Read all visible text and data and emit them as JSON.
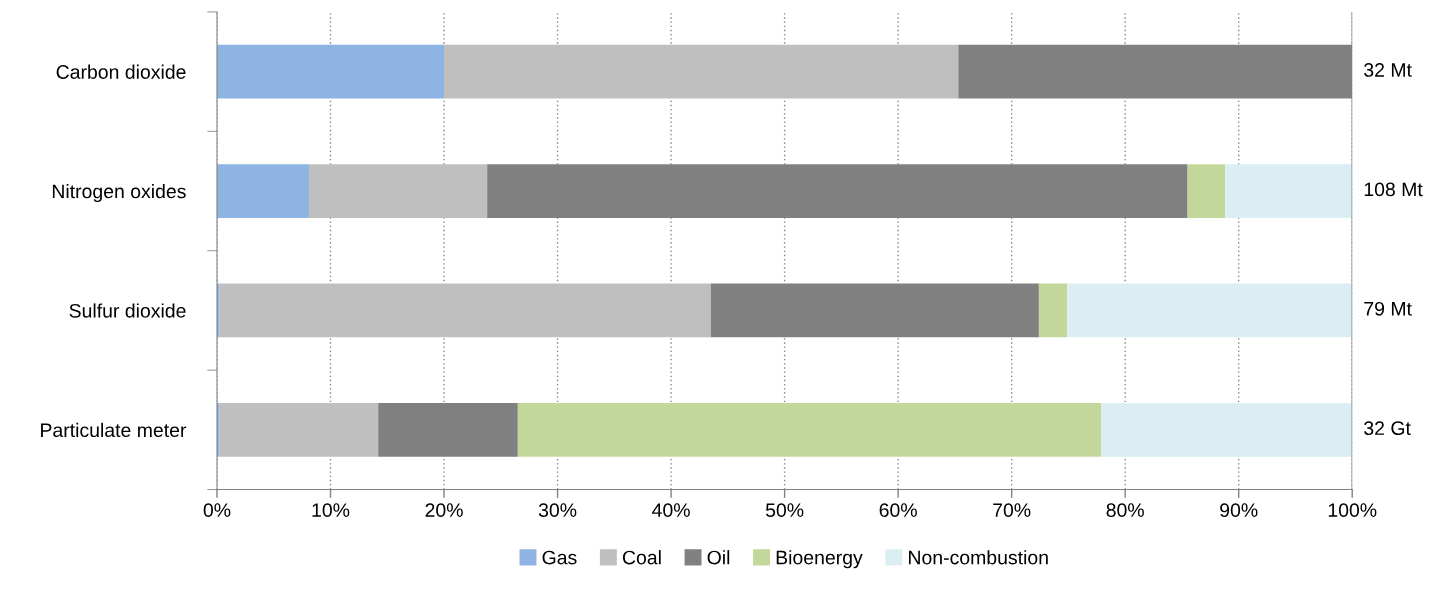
{
  "chart_data": {
    "type": "bar",
    "orientation": "horizontal",
    "stacked": true,
    "categories": [
      "Carbon dioxide",
      "Nitrogen oxides",
      "Sulfur dioxide",
      "Particulate meter"
    ],
    "series": [
      {
        "name": "Gas",
        "color": "#8db4e2",
        "values": [
          20.0,
          8.1,
          0.2,
          0.2
        ]
      },
      {
        "name": "Coal",
        "color": "#bfbfbf",
        "values": [
          45.3,
          15.7,
          43.3,
          14.0
        ]
      },
      {
        "name": "Oil",
        "color": "#808080",
        "values": [
          34.7,
          61.7,
          28.9,
          12.3
        ]
      },
      {
        "name": "Bioenergy",
        "color": "#c4d79b",
        "values": [
          0,
          3.3,
          2.5,
          51.4
        ]
      },
      {
        "name": "Non-combustion",
        "color": "#daeef3",
        "values": [
          0,
          11.2,
          25.1,
          22.1
        ]
      }
    ],
    "annotations": [
      "32 Mt",
      "108 Mt",
      "79 Mt",
      "32 Gt"
    ],
    "xlim": [
      0,
      100
    ],
    "xticks": [
      {
        "value": 0,
        "label": "0%"
      },
      {
        "value": 10,
        "label": "10%"
      },
      {
        "value": 20,
        "label": "20%"
      },
      {
        "value": 30,
        "label": "30%"
      },
      {
        "value": 40,
        "label": "40%"
      },
      {
        "value": 50,
        "label": "50%"
      },
      {
        "value": 60,
        "label": "60%"
      },
      {
        "value": 70,
        "label": "70%"
      },
      {
        "value": 80,
        "label": "80%"
      },
      {
        "value": 90,
        "label": "90%"
      },
      {
        "value": 100,
        "label": "100%"
      }
    ],
    "grid": "x",
    "legend": "bottom"
  }
}
